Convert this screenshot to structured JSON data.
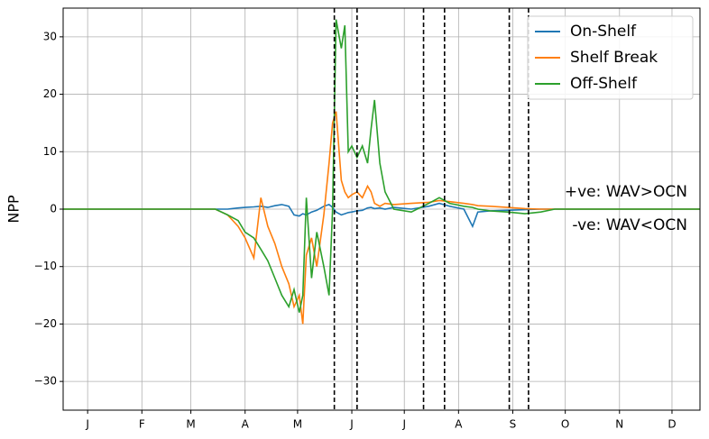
{
  "chart_data": {
    "type": "line",
    "ylabel": "NPP",
    "x": [
      1,
      88,
      95,
      101,
      105,
      110,
      114,
      118,
      122,
      126,
      130,
      133,
      136,
      138,
      140,
      143,
      146,
      150,
      153,
      155,
      157,
      160,
      162,
      164,
      166,
      169,
      172,
      175,
      177,
      179,
      182,
      185,
      190,
      200,
      210,
      216,
      222,
      230,
      235,
      238,
      245,
      255,
      265,
      274,
      282,
      365
    ],
    "series": [
      {
        "name": "On-Shelf",
        "color": "#1f77b4",
        "values": [
          0,
          0,
          0,
          0.2,
          0.3,
          0.4,
          0.5,
          0.3,
          0.6,
          0.8,
          0.5,
          -1,
          -1.2,
          -0.8,
          -1,
          -0.5,
          -0.2,
          0.5,
          0.8,
          0.3,
          -0.5,
          -1,
          -0.8,
          -0.6,
          -0.5,
          -0.3,
          -0.2,
          0.2,
          0.3,
          0.1,
          0.2,
          0,
          0.3,
          0,
          0.5,
          1,
          0.5,
          0,
          -3,
          -0.5,
          -0.3,
          -0.2,
          -0.1,
          0,
          0,
          0
        ]
      },
      {
        "name": "Shelf Break",
        "color": "#ff7f0e",
        "values": [
          0,
          0,
          -1,
          -3,
          -5,
          -8.5,
          2,
          -3,
          -6,
          -10,
          -13,
          -17,
          -15,
          -20,
          -8,
          -5,
          -10,
          -1,
          8,
          15,
          17,
          5,
          3,
          2,
          2.5,
          3,
          2,
          4,
          3,
          1,
          0.5,
          1,
          0.8,
          1,
          1.2,
          1.5,
          1.3,
          1,
          0.8,
          0.6,
          0.5,
          0.3,
          0.1,
          0,
          0,
          0
        ]
      },
      {
        "name": "Off-Shelf",
        "color": "#2ca02c",
        "values": [
          0,
          0,
          -1,
          -2,
          -4,
          -5,
          -7,
          -9,
          -12,
          -15,
          -17,
          -14,
          -18,
          -15,
          2,
          -12,
          -4,
          -10,
          -15,
          0,
          33,
          28,
          32,
          10,
          11,
          9,
          11,
          8,
          14,
          19,
          8,
          3,
          0,
          -0.5,
          1,
          2,
          1,
          0.5,
          0.3,
          0,
          -0.3,
          -0.5,
          -0.8,
          -0.5,
          0,
          0
        ]
      }
    ],
    "xlim": [
      1,
      365
    ],
    "xticks": [
      {
        "value": 15,
        "label": "J"
      },
      {
        "value": 46,
        "label": "F"
      },
      {
        "value": 74,
        "label": "M"
      },
      {
        "value": 105,
        "label": "A"
      },
      {
        "value": 135,
        "label": "M"
      },
      {
        "value": 166,
        "label": "J"
      },
      {
        "value": 196,
        "label": "J"
      },
      {
        "value": 227,
        "label": "A"
      },
      {
        "value": 258,
        "label": "S"
      },
      {
        "value": 288,
        "label": "O"
      },
      {
        "value": 319,
        "label": "N"
      },
      {
        "value": 349,
        "label": "D"
      }
    ],
    "ylim": [
      -35,
      35
    ],
    "yticks": [
      {
        "value": -30,
        "label": "−30"
      },
      {
        "value": -20,
        "label": "−20"
      },
      {
        "value": -10,
        "label": "−10"
      },
      0,
      10,
      20,
      30
    ],
    "vlines": [
      156,
      169,
      207,
      219,
      256,
      267
    ],
    "annotations": [
      "+ve: WAV>OCN",
      "-ve: WAV<OCN"
    ],
    "grid": true,
    "legend": "upper right"
  }
}
